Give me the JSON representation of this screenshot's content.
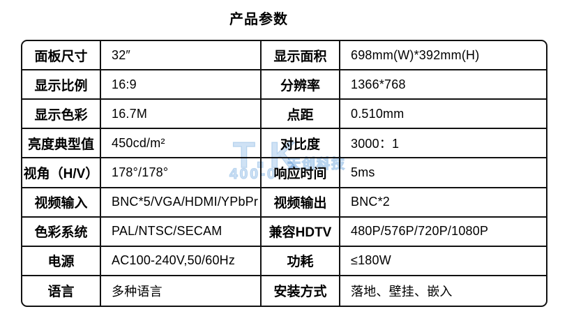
{
  "title": "产品参数",
  "watermark": {
    "logo": "T.K",
    "company": "天创科技",
    "phone": "400-0",
    "color": "#b7d3ee"
  },
  "table": {
    "rows": [
      {
        "label1": "面板尺寸",
        "value1": "32″",
        "label2": "显示面积",
        "value2": "698mm(W)*392mm(H)"
      },
      {
        "label1": "显示比例",
        "value1": "16:9",
        "label2": "分辨率",
        "value2": "1366*768"
      },
      {
        "label1": "显示色彩",
        "value1": "16.7M",
        "label2": "点距",
        "value2": "0.510mm"
      },
      {
        "label1": "亮度典型值",
        "value1": "450cd/m²",
        "label2": "对比度",
        "value2": "3000：1"
      },
      {
        "label1": "视角（H/V）",
        "value1": "178°/178°",
        "label2": "响应时间",
        "value2": "5ms"
      },
      {
        "label1": "视频输入",
        "value1": "BNC*5/VGA/HDMI/YPbPr",
        "label2": "视频输出",
        "value2": "BNC*2"
      },
      {
        "label1": "色彩系统",
        "value1": "PAL/NTSC/SECAM",
        "label2": "兼容HDTV",
        "value2": "480P/576P/720P/1080P"
      },
      {
        "label1": "电源",
        "value1": "AC100-240V,50/60Hz",
        "label2": "功耗",
        "value2": "≤180W"
      },
      {
        "label1": "语言",
        "value1": "多种语言",
        "label2": "安装方式",
        "value2": "落地、壁挂、嵌入"
      }
    ]
  }
}
